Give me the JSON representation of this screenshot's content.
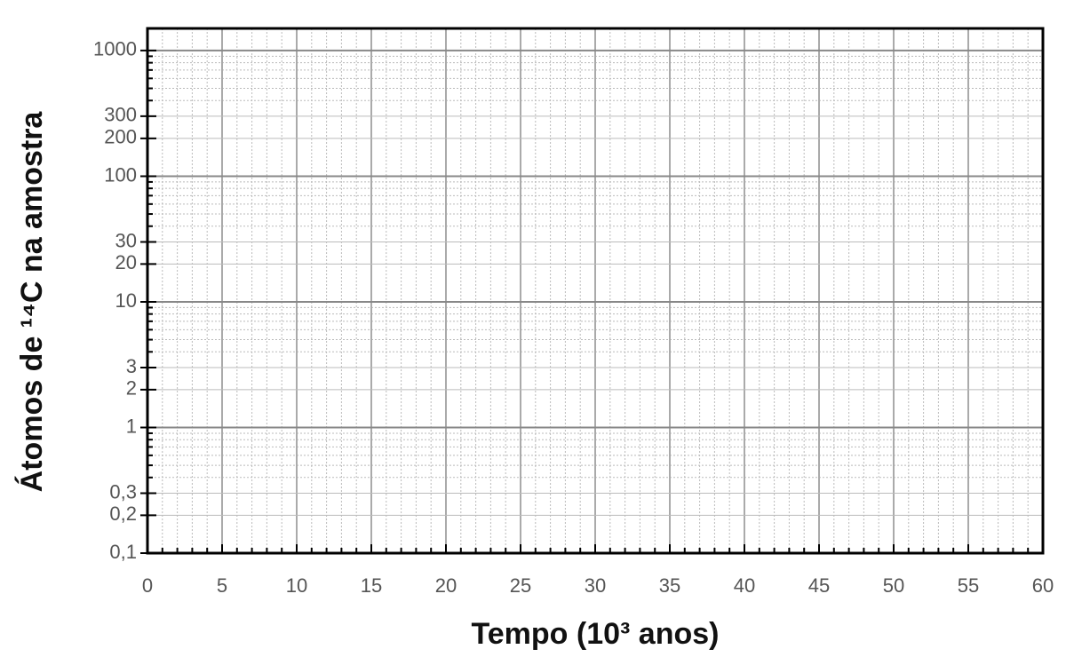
{
  "chart_data": {
    "type": "line",
    "xlabel": "Tempo (10³ anos)",
    "ylabel": "Átomos de ¹⁴C na amostra",
    "xlim": [
      0,
      60
    ],
    "xticks": [
      0,
      5,
      10,
      15,
      20,
      25,
      30,
      35,
      40,
      45,
      50,
      55,
      60
    ],
    "x_minor_ticks": [
      1,
      2,
      3,
      4,
      6,
      7,
      8,
      9,
      11,
      12,
      13,
      14,
      16,
      17,
      18,
      19,
      21,
      22,
      23,
      24,
      26,
      27,
      28,
      29,
      31,
      32,
      33,
      34,
      36,
      37,
      38,
      39,
      41,
      42,
      43,
      44,
      46,
      47,
      48,
      49,
      51,
      52,
      53,
      54,
      56,
      57,
      58,
      59
    ],
    "ylim": [
      0.1,
      1500
    ],
    "yscale": "log",
    "yticks": [
      {
        "value": 0.1,
        "label": "0,1"
      },
      {
        "value": 0.2,
        "label": "0,2"
      },
      {
        "value": 0.3,
        "label": "0,3"
      },
      1,
      2,
      3,
      10,
      20,
      30,
      100,
      200,
      300,
      1000
    ],
    "y_minor_ticks": [
      0.4,
      0.5,
      0.6,
      0.7,
      0.8,
      0.9,
      4,
      5,
      6,
      7,
      8,
      9,
      40,
      50,
      60,
      70,
      80,
      90,
      400,
      500,
      600,
      700,
      800,
      900
    ],
    "grid": true
  }
}
